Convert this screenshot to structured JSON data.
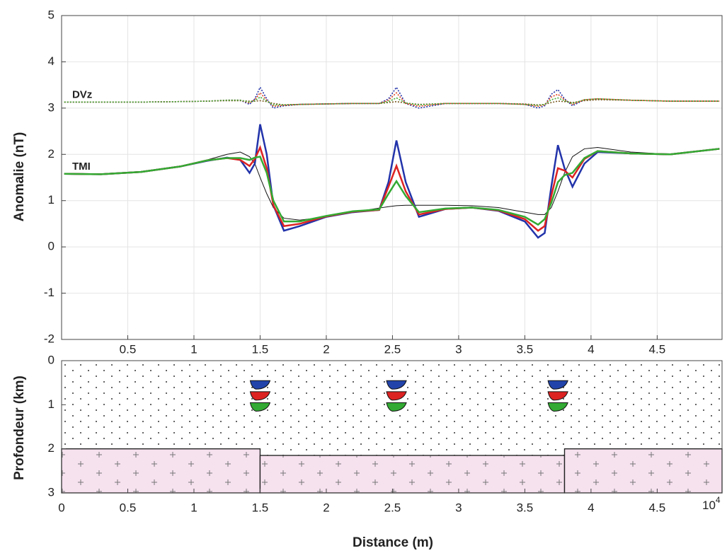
{
  "chart_data": [
    {
      "type": "line",
      "y_label": "Anomalie (nT)",
      "annotations": [
        {
          "text": "DVz",
          "x": 0.08,
          "y": 3.28
        },
        {
          "text": "TMI",
          "x": 0.08,
          "y": 1.73
        }
      ],
      "x": [
        0.02,
        0.3,
        0.6,
        0.9,
        1.1,
        1.25,
        1.35,
        1.42,
        1.46,
        1.5,
        1.55,
        1.6,
        1.68,
        1.8,
        2.0,
        2.2,
        2.4,
        2.47,
        2.53,
        2.6,
        2.7,
        2.9,
        3.1,
        3.3,
        3.5,
        3.6,
        3.65,
        3.7,
        3.75,
        3.8,
        3.86,
        3.95,
        4.05,
        4.3,
        4.6,
        4.97
      ],
      "series": [
        {
          "name": "DVz-ref",
          "color": "#7a5a20",
          "style": "dotted",
          "values": [
            3.13,
            3.13,
            3.13,
            3.14,
            3.15,
            3.16,
            3.16,
            3.15,
            3.15,
            3.16,
            3.14,
            3.1,
            3.07,
            3.08,
            3.09,
            3.1,
            3.1,
            3.12,
            3.14,
            3.11,
            3.08,
            3.1,
            3.1,
            3.1,
            3.09,
            3.07,
            3.08,
            3.12,
            3.15,
            3.14,
            3.12,
            3.16,
            3.18,
            3.17,
            3.15,
            3.15
          ]
        },
        {
          "name": "DVz-blue",
          "color": "#2233aa",
          "style": "dotted",
          "values": [
            3.13,
            3.13,
            3.13,
            3.14,
            3.15,
            3.17,
            3.17,
            3.08,
            3.2,
            3.45,
            3.2,
            3.0,
            3.05,
            3.08,
            3.09,
            3.1,
            3.1,
            3.2,
            3.45,
            3.1,
            3.0,
            3.1,
            3.1,
            3.1,
            3.08,
            3.0,
            3.05,
            3.3,
            3.4,
            3.2,
            3.05,
            3.18,
            3.2,
            3.17,
            3.15,
            3.15
          ]
        },
        {
          "name": "DVz-red",
          "color": "#dd4422",
          "style": "dotted",
          "values": [
            3.13,
            3.13,
            3.13,
            3.14,
            3.15,
            3.17,
            3.17,
            3.11,
            3.18,
            3.33,
            3.17,
            3.04,
            3.06,
            3.08,
            3.09,
            3.1,
            3.1,
            3.17,
            3.33,
            3.1,
            3.04,
            3.1,
            3.1,
            3.1,
            3.08,
            3.04,
            3.07,
            3.24,
            3.3,
            3.18,
            3.08,
            3.18,
            3.2,
            3.17,
            3.15,
            3.15
          ]
        },
        {
          "name": "DVz-green",
          "color": "#44aa33",
          "style": "dotted",
          "values": [
            3.13,
            3.13,
            3.13,
            3.14,
            3.15,
            3.17,
            3.17,
            3.13,
            3.16,
            3.24,
            3.15,
            3.07,
            3.07,
            3.08,
            3.09,
            3.1,
            3.1,
            3.14,
            3.22,
            3.11,
            3.07,
            3.1,
            3.1,
            3.1,
            3.08,
            3.06,
            3.08,
            3.18,
            3.22,
            3.16,
            3.1,
            3.18,
            3.2,
            3.17,
            3.15,
            3.15
          ]
        },
        {
          "name": "TMI-ref",
          "color": "#111111",
          "style": "thin",
          "values": [
            1.58,
            1.58,
            1.63,
            1.75,
            1.88,
            2.0,
            2.05,
            1.95,
            1.8,
            1.5,
            1.15,
            0.85,
            0.62,
            0.58,
            0.65,
            0.75,
            0.84,
            0.87,
            0.89,
            0.9,
            0.9,
            0.9,
            0.89,
            0.85,
            0.75,
            0.7,
            0.7,
            0.85,
            1.2,
            1.6,
            1.95,
            2.12,
            2.15,
            2.05,
            2.0,
            2.12
          ]
        },
        {
          "name": "TMI-blue",
          "color": "#2233aa",
          "style": "solid",
          "values": [
            1.58,
            1.57,
            1.62,
            1.74,
            1.86,
            1.93,
            1.88,
            1.6,
            1.8,
            2.65,
            2.0,
            0.9,
            0.35,
            0.45,
            0.65,
            0.75,
            0.8,
            1.4,
            2.3,
            1.4,
            0.65,
            0.82,
            0.85,
            0.78,
            0.55,
            0.2,
            0.3,
            1.3,
            2.2,
            1.7,
            1.3,
            1.8,
            2.05,
            2.02,
            2.0,
            2.12
          ]
        },
        {
          "name": "TMI-red",
          "color": "#dd2222",
          "style": "solid",
          "values": [
            1.58,
            1.57,
            1.62,
            1.74,
            1.87,
            1.92,
            1.88,
            1.75,
            1.9,
            2.15,
            1.7,
            0.9,
            0.45,
            0.5,
            0.66,
            0.76,
            0.8,
            1.3,
            1.75,
            1.2,
            0.7,
            0.82,
            0.85,
            0.79,
            0.6,
            0.35,
            0.45,
            1.1,
            1.7,
            1.65,
            1.5,
            1.9,
            2.07,
            2.02,
            2.0,
            2.12
          ]
        },
        {
          "name": "TMI-green",
          "color": "#33aa33",
          "style": "solid",
          "values": [
            1.58,
            1.57,
            1.62,
            1.74,
            1.87,
            1.92,
            1.92,
            1.88,
            1.93,
            1.95,
            1.6,
            1.0,
            0.55,
            0.55,
            0.67,
            0.77,
            0.81,
            1.15,
            1.42,
            1.1,
            0.75,
            0.83,
            0.85,
            0.8,
            0.65,
            0.48,
            0.6,
            0.95,
            1.4,
            1.55,
            1.6,
            1.92,
            2.07,
            2.02,
            2.0,
            2.12
          ]
        }
      ],
      "xlim": [
        0,
        4.99
      ],
      "xticks": [
        0.5,
        1,
        1.5,
        2,
        2.5,
        3,
        3.5,
        4,
        4.5
      ],
      "ylim": [
        -2,
        5
      ],
      "yticks": [
        -2,
        -1,
        0,
        1,
        2,
        3,
        4,
        5
      ],
      "grid": true
    },
    {
      "type": "section",
      "x_label": "Distance (m)",
      "y_label": "Profondeur (km)",
      "x_multiplier": {
        "base": "10",
        "power": "4"
      },
      "xlim": [
        0,
        4.99
      ],
      "xticks": [
        0,
        0.5,
        1,
        1.5,
        2,
        2.5,
        3,
        3.5,
        4,
        4.5
      ],
      "ylim": [
        0,
        3
      ],
      "yticks": [
        0,
        1,
        2,
        3
      ],
      "y_inverted": true,
      "blocks": [
        {
          "x": [
            0,
            1.5
          ],
          "top": 2
        },
        {
          "x": [
            1.5,
            3.8
          ],
          "top": 2.15
        },
        {
          "x": [
            3.8,
            4.99
          ],
          "top": 2
        }
      ],
      "block_color": "#f6e1ef",
      "bodies": [
        {
          "x": 1.5,
          "depth": 0.55,
          "color": "#2244aa"
        },
        {
          "x": 1.5,
          "depth": 0.8,
          "color": "#dd2222"
        },
        {
          "x": 1.5,
          "depth": 1.05,
          "color": "#33aa33"
        },
        {
          "x": 2.53,
          "depth": 0.55,
          "color": "#2244aa"
        },
        {
          "x": 2.53,
          "depth": 0.8,
          "color": "#dd2222"
        },
        {
          "x": 2.53,
          "depth": 1.05,
          "color": "#33aa33"
        },
        {
          "x": 3.75,
          "depth": 0.55,
          "color": "#2244aa"
        },
        {
          "x": 3.75,
          "depth": 0.8,
          "color": "#dd2222"
        },
        {
          "x": 3.75,
          "depth": 1.05,
          "color": "#33aa33"
        }
      ]
    }
  ]
}
